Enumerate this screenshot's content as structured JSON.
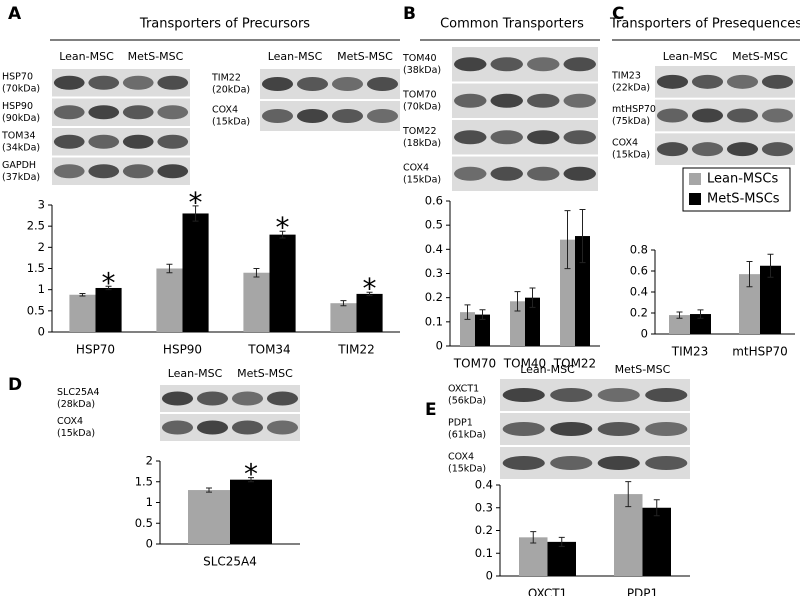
{
  "chart_data": [
    {
      "type": "bar",
      "panel": "A",
      "title": "Transporters of Precursors",
      "blot_groups": [
        {
          "lanes": [
            "Lean-MSC",
            "MetS-MSC"
          ],
          "blots": [
            {
              "name": "HSP70",
              "size": "(70kDa)"
            },
            {
              "name": "HSP90",
              "size": "(90kDa)"
            },
            {
              "name": "TOM34",
              "size": "(34kDa)"
            },
            {
              "name": "GAPDH",
              "size": "(37kDa)"
            }
          ]
        },
        {
          "lanes": [
            "Lean-MSC",
            "MetS-MSC"
          ],
          "blots": [
            {
              "name": "TIM22",
              "size": "(20kDa)"
            },
            {
              "name": "COX4",
              "size": "(15kDa)"
            }
          ]
        }
      ],
      "categories": [
        "HSP70",
        "HSP90",
        "TOM34",
        "TIM22"
      ],
      "series": [
        {
          "color": "#a6a6a6",
          "values": [
            0.88,
            1.5,
            1.4,
            0.68
          ],
          "errors": [
            0.03,
            0.1,
            0.1,
            0.06
          ]
        },
        {
          "color": "#000000",
          "values": [
            1.04,
            2.8,
            2.3,
            0.9
          ],
          "errors": [
            0.04,
            0.18,
            0.08,
            0.04
          ]
        }
      ],
      "significance": [
        "*",
        "*",
        "*",
        "*"
      ],
      "ylim": [
        0,
        3
      ],
      "yticks": [
        0,
        0.5,
        1,
        1.5,
        2,
        2.5,
        3
      ]
    },
    {
      "type": "bar",
      "panel": "B",
      "title": "Common Transporters",
      "blot_groups": [
        {
          "blots": [
            {
              "name": "TOM40",
              "size": "(38kDa)"
            },
            {
              "name": "TOM70",
              "size": "(70kDa)"
            },
            {
              "name": "TOM22",
              "size": "(18kDa)"
            },
            {
              "name": "COX4",
              "size": "(15kDa)"
            }
          ]
        }
      ],
      "categories": [
        "TOM70",
        "TOM40",
        "TOM22"
      ],
      "series": [
        {
          "color": "#a6a6a6",
          "values": [
            0.14,
            0.185,
            0.44
          ],
          "errors": [
            0.03,
            0.04,
            0.12
          ]
        },
        {
          "color": "#000000",
          "values": [
            0.13,
            0.2,
            0.455
          ],
          "errors": [
            0.02,
            0.04,
            0.11
          ]
        }
      ],
      "ylim": [
        0,
        0.6
      ],
      "yticks": [
        0,
        0.1,
        0.2,
        0.3,
        0.4,
        0.5,
        0.6
      ]
    },
    {
      "type": "bar",
      "panel": "C",
      "title": "Transporters of Presequences",
      "blot_groups": [
        {
          "lanes": [
            "Lean-MSC",
            "MetS-MSC"
          ],
          "blots": [
            {
              "name": "TIM23",
              "size": "(22kDa)"
            },
            {
              "name": "mtHSP70",
              "size": "(75kDa)"
            },
            {
              "name": "COX4",
              "size": "(15kDa)"
            }
          ]
        }
      ],
      "categories": [
        "TIM23",
        "mtHSP70"
      ],
      "series": [
        {
          "name": "Lean-MSCs",
          "color": "#a6a6a6",
          "values": [
            0.18,
            0.57
          ],
          "errors": [
            0.03,
            0.12
          ]
        },
        {
          "name": "MetS-MSCs",
          "color": "#000000",
          "values": [
            0.19,
            0.65
          ],
          "errors": [
            0.04,
            0.11
          ]
        }
      ],
      "legend": true,
      "ylim": [
        0,
        0.8
      ],
      "yticks": [
        0,
        0.2,
        0.4,
        0.6,
        0.8
      ]
    },
    {
      "type": "bar",
      "panel": "D",
      "blot_groups": [
        {
          "lanes": [
            "Lean-MSC",
            "MetS-MSC"
          ],
          "blots": [
            {
              "name": "SLC25A4",
              "size": "(28kDa)"
            },
            {
              "name": "COX4",
              "size": "(15kDa)"
            }
          ]
        }
      ],
      "categories": [
        "SLC25A4"
      ],
      "series": [
        {
          "color": "#a6a6a6",
          "values": [
            1.3
          ],
          "errors": [
            0.05
          ]
        },
        {
          "color": "#000000",
          "values": [
            1.55
          ],
          "errors": [
            0.05
          ]
        }
      ],
      "significance": [
        "*"
      ],
      "ylim": [
        0,
        2
      ],
      "yticks": [
        0,
        0.5,
        1,
        1.5,
        2
      ]
    },
    {
      "type": "bar",
      "panel": "E",
      "blot_groups": [
        {
          "lanes": [
            "Lean-MSC",
            "MetS-MSC"
          ],
          "blots": [
            {
              "name": "OXCT1",
              "size": "(56kDa)"
            },
            {
              "name": "PDP1",
              "size": "(61kDa)"
            },
            {
              "name": "COX4",
              "size": "(15kDa)"
            }
          ]
        }
      ],
      "categories": [
        "OXCT1",
        "PDP1"
      ],
      "series": [
        {
          "color": "#a6a6a6",
          "values": [
            0.17,
            0.36
          ],
          "errors": [
            0.025,
            0.055
          ]
        },
        {
          "color": "#000000",
          "values": [
            0.15,
            0.3
          ],
          "errors": [
            0.02,
            0.035
          ]
        }
      ],
      "ylim": [
        0,
        0.4
      ],
      "yticks": [
        0,
        0.1,
        0.2,
        0.3,
        0.4
      ]
    }
  ]
}
